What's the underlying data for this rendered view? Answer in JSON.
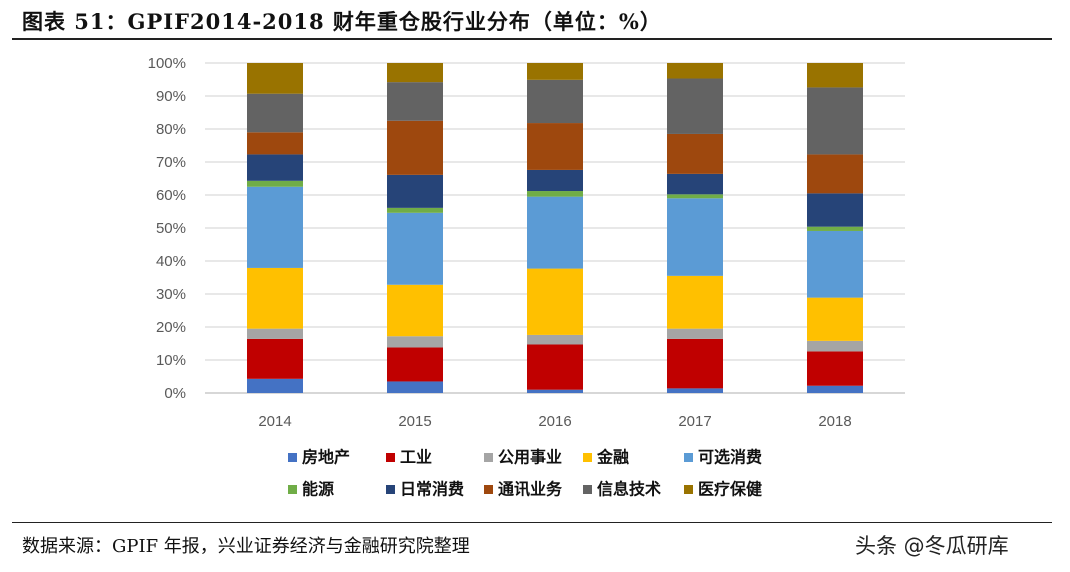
{
  "title": "图表 51：GPIF2014-2018 财年重仓股行业分布（单位：%）",
  "source": "数据来源：GPIF 年报，兴业证券经济与金融研究院整理",
  "watermark": "头条 @冬瓜研库",
  "chart_data": {
    "type": "bar",
    "stacked": true,
    "categories": [
      "2014",
      "2015",
      "2016",
      "2017",
      "2018"
    ],
    "ylim": [
      0,
      100
    ],
    "yticks": [
      "0%",
      "10%",
      "20%",
      "30%",
      "40%",
      "50%",
      "60%",
      "70%",
      "80%",
      "90%",
      "100%"
    ],
    "grid": true,
    "legend_placement": "bottom",
    "series": [
      {
        "name": "房地产",
        "color": "#4472C4",
        "values": [
          4.3,
          3.5,
          1.0,
          1.4,
          2.2
        ]
      },
      {
        "name": "工业",
        "color": "#C00000",
        "values": [
          12.1,
          10.3,
          13.7,
          15.0,
          10.4
        ]
      },
      {
        "name": "公用事业",
        "color": "#A5A5A5",
        "values": [
          3.1,
          3.4,
          2.9,
          3.1,
          3.2
        ]
      },
      {
        "name": "金融",
        "color": "#FFC000",
        "values": [
          18.4,
          15.6,
          20.1,
          16.0,
          13.1
        ]
      },
      {
        "name": "可选消费",
        "color": "#5B9BD5",
        "values": [
          24.6,
          21.8,
          21.8,
          23.5,
          20.2
        ]
      },
      {
        "name": "能源",
        "color": "#70AD47",
        "values": [
          1.8,
          1.5,
          1.7,
          1.2,
          1.3
        ]
      },
      {
        "name": "日常消费",
        "color": "#264478",
        "values": [
          8.0,
          10.0,
          6.4,
          6.2,
          10.1
        ]
      },
      {
        "name": "通讯业务",
        "color": "#9E480E",
        "values": [
          6.7,
          16.4,
          14.2,
          12.1,
          11.8
        ]
      },
      {
        "name": "信息技术",
        "color": "#636363",
        "values": [
          11.7,
          11.7,
          13.1,
          16.8,
          20.3
        ]
      },
      {
        "name": "医疗保健",
        "color": "#997300",
        "values": [
          9.3,
          5.8,
          5.1,
          4.7,
          7.4
        ]
      }
    ]
  }
}
